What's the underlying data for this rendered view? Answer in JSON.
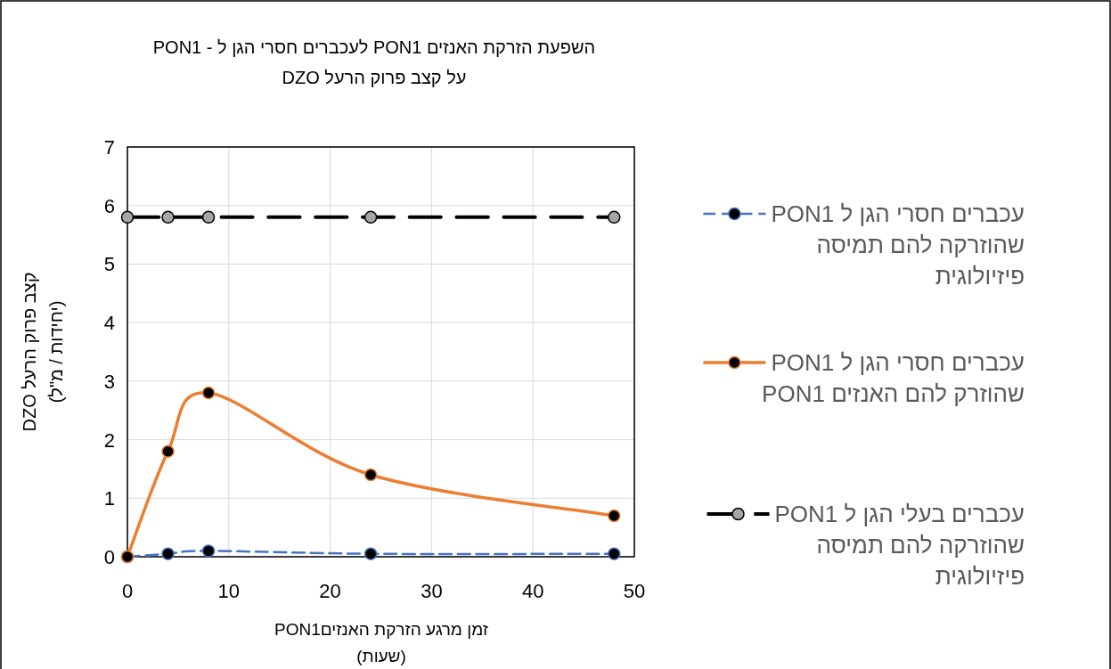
{
  "chart_data": {
    "type": "line",
    "title": "השפעת הזרקת האנזים  PON1 לעכברים חסרי הגן ל -  PON1\nעל קצב פרוק הרעל DZO",
    "xlabel": "זמן מרגע הזרקת האנזיםPON1\n(שעות)",
    "ylabel": "קצב פרוק הרעל DZO\n(יחידות / מ\"ל)",
    "x": [
      0,
      4,
      8,
      24,
      48
    ],
    "series": [
      {
        "name": "עכברים חסרי הגן ל  PON1\nשהוזרקה להם תמיסה\nפיזיולוגית",
        "color": "#4472c4",
        "line_style": "dashed",
        "values": [
          0,
          0.05,
          0.1,
          0.05,
          0.05
        ]
      },
      {
        "name": "עכברים חסרי הגן ל  PON1\nשהוזרק להם האנזים PON1",
        "color": "#ed7d31",
        "line_style": "solid",
        "values": [
          0,
          1.8,
          2.8,
          1.4,
          0.7
        ]
      },
      {
        "name": "עכברים בעלי הגן ל  PON1\nשהוזרקה להם תמיסה\nפיזיולוגית",
        "color": "#000000",
        "line_style": "dashed",
        "values": [
          5.8,
          5.8,
          5.8,
          5.8,
          5.8
        ]
      }
    ],
    "xlim": [
      0,
      50
    ],
    "xticks": [
      0,
      10,
      20,
      30,
      40,
      50
    ],
    "ylim": [
      0,
      7
    ],
    "yticks": [
      0,
      1,
      2,
      3,
      4,
      5,
      6,
      7
    ],
    "grid": true,
    "legend": "right",
    "marker": "circle"
  }
}
